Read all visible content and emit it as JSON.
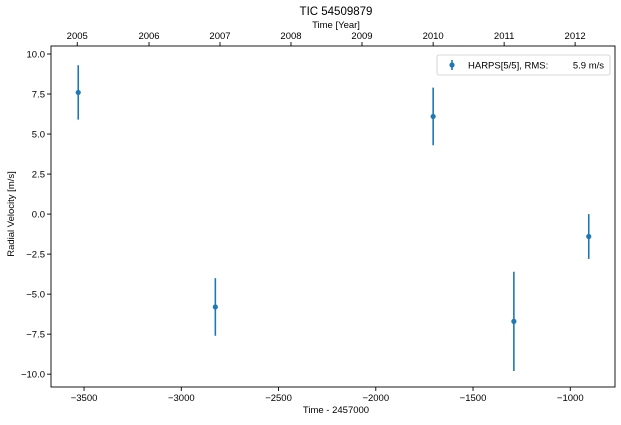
{
  "chart_data": {
    "type": "scatter",
    "title": "TIC 54509879",
    "xlabel": "Time - 2457000",
    "ylabel": "Radial Velocity [m/s]",
    "top_xlabel": "Time [Year]",
    "xlim": [
      -3670,
      -770
    ],
    "ylim": [
      -10.8,
      10.5
    ],
    "xticks": [
      -3500,
      -3000,
      -2500,
      -2000,
      -1500,
      -1000
    ],
    "xtick_labels": [
      "−3500",
      "−3000",
      "−2500",
      "−2000",
      "−1500",
      "−1000"
    ],
    "yticks": [
      10.0,
      7.5,
      5.0,
      2.5,
      0.0,
      -2.5,
      -5.0,
      -7.5,
      -10.0
    ],
    "ytick_labels": [
      "10.0",
      "7.5",
      "5.0",
      "2.5",
      "0.0",
      "−2.5",
      "−5.0",
      "−7.5",
      "−10.0"
    ],
    "top_xticks": [
      -3535,
      -3166,
      -2801,
      -2436,
      -2071,
      -1705,
      -1340,
      -975
    ],
    "top_xtick_labels": [
      "2005",
      "2006",
      "2007",
      "2008",
      "2009",
      "2010",
      "2011",
      "2012"
    ],
    "grid": false,
    "legend_position": "top-right",
    "series": [
      {
        "name": "HARPS[5/5], RMS:",
        "rms": "5.9 m/s",
        "color": "#1f77b4",
        "points": [
          {
            "x": -3530,
            "y": 7.6,
            "err": 1.7
          },
          {
            "x": -2825,
            "y": -5.8,
            "err": 1.8
          },
          {
            "x": -1705,
            "y": 6.1,
            "err": 1.8
          },
          {
            "x": -1290,
            "y": -6.7,
            "err": 3.1
          },
          {
            "x": -905,
            "y": -1.4,
            "err": 1.4
          }
        ]
      }
    ]
  }
}
